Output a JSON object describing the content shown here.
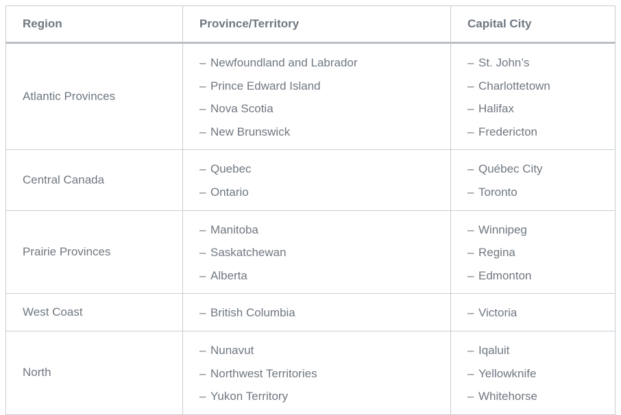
{
  "table": {
    "headers": {
      "region": "Region",
      "province": "Province/Territory",
      "capital": "Capital City"
    },
    "bullet": "–",
    "rows": [
      {
        "region": "Atlantic Provinces",
        "provinces": [
          "Newfoundland and Labrador",
          "Prince Edward Island",
          "Nova Scotia",
          "New Brunswick"
        ],
        "capitals": [
          "St. John’s",
          "Charlottetown",
          "Halifax",
          "Fredericton"
        ]
      },
      {
        "region": "Central Canada",
        "provinces": [
          "Quebec",
          "Ontario"
        ],
        "capitals": [
          "Québec City",
          "Toronto"
        ]
      },
      {
        "region": "Prairie Provinces",
        "provinces": [
          "Manitoba",
          "Saskatchewan",
          "Alberta"
        ],
        "capitals": [
          "Winnipeg",
          "Regina",
          "Edmonton"
        ]
      },
      {
        "region": "West Coast",
        "provinces": [
          "British Columbia"
        ],
        "capitals": [
          "Victoria"
        ]
      },
      {
        "region": "North",
        "provinces": [
          "Nunavut",
          "Northwest Territories",
          "Yukon Territory"
        ],
        "capitals": [
          "Iqaluit",
          "Yellowknife",
          "Whitehorse"
        ]
      }
    ]
  }
}
